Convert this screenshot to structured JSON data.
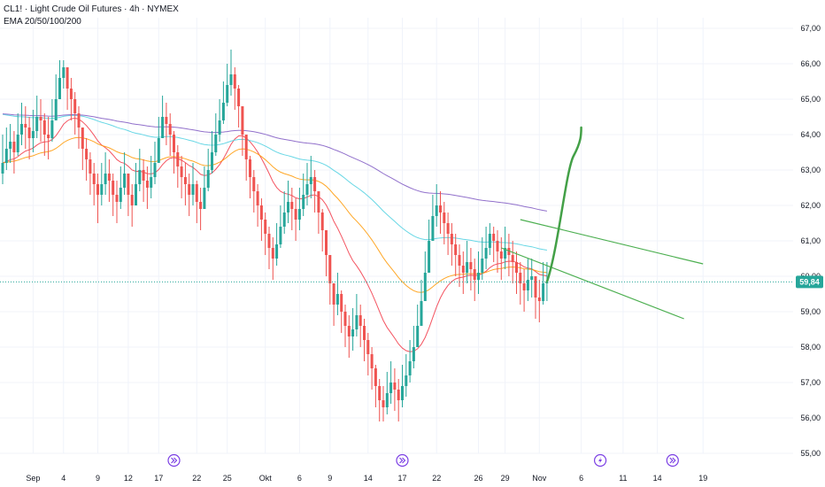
{
  "header": {
    "symbol_line": "CL1! · Light Crude Oil Futures · 4h · NYMEX",
    "indicator_line": "EMA 20/50/100/200"
  },
  "colors": {
    "up": "#26a69a",
    "down": "#ef5350",
    "ema20": "#f23645",
    "ema50": "#ff9800",
    "ema100": "#4dd0e1",
    "ema200": "#7e57c2",
    "channel": "#4caf50",
    "projection": "#43a047",
    "last_price": "#26a69a",
    "grid": "#f0f3fa",
    "event": "#7b3fe4"
  },
  "chart_data": {
    "type": "candlestick",
    "title": "CL1! · Light Crude Oil Futures · 4h · NYMEX",
    "ylim": [
      55.0,
      67.3
    ],
    "y_ticks": [
      "55,00",
      "56,00",
      "57,00",
      "58,00",
      "59,00",
      "60,00",
      "61,00",
      "62,00",
      "63,00",
      "64,00",
      "65,00",
      "66,00",
      "67,00"
    ],
    "y_tick_values": [
      55,
      56,
      57,
      58,
      59,
      60,
      61,
      62,
      63,
      64,
      65,
      66,
      67
    ],
    "x_tick_labels": [
      "Sep",
      "4",
      "9",
      "12",
      "17",
      "22",
      "25",
      "Okt",
      "6",
      "9",
      "14",
      "17",
      "22",
      "26",
      "29",
      "Nov",
      "6",
      "11",
      "14",
      "19"
    ],
    "x_tick_index": [
      8,
      16,
      25,
      33,
      41,
      51,
      59,
      69,
      78,
      86,
      96,
      105,
      114,
      125,
      132,
      141,
      152,
      163,
      172,
      184
    ],
    "last_price": {
      "label": "59,84",
      "value": 59.84
    },
    "event_markers": [
      {
        "index": 45,
        "icon": "double-chevron-right-icon"
      },
      {
        "index": 105,
        "icon": "double-chevron-right-icon"
      },
      {
        "index": 157,
        "icon": "lightning-icon"
      },
      {
        "index": 176,
        "icon": "double-chevron-right-icon"
      }
    ],
    "closes": [
      63.2,
      63.6,
      63.8,
      63.5,
      64.0,
      64.3,
      64.2,
      63.9,
      64.1,
      64.5,
      64.4,
      64.0,
      63.9,
      64.4,
      65.0,
      65.6,
      65.9,
      65.3,
      65.0,
      64.6,
      64.2,
      63.6,
      63.3,
      62.9,
      62.6,
      62.3,
      62.6,
      62.9,
      62.7,
      62.3,
      62.1,
      62.5,
      62.9,
      62.3,
      62.0,
      62.6,
      63.0,
      62.7,
      62.5,
      62.8,
      63.2,
      63.9,
      64.5,
      64.3,
      64.0,
      63.5,
      63.1,
      62.8,
      62.6,
      62.3,
      62.6,
      62.1,
      61.9,
      62.5,
      63.0,
      63.5,
      64.0,
      64.4,
      64.9,
      65.4,
      65.7,
      65.3,
      64.8,
      64.0,
      63.3,
      62.8,
      62.4,
      62.0,
      61.6,
      61.2,
      60.8,
      60.5,
      60.9,
      61.4,
      61.8,
      62.1,
      61.9,
      61.6,
      61.9,
      62.3,
      62.6,
      62.8,
      62.4,
      61.8,
      61.3,
      60.6,
      59.8,
      59.2,
      59.5,
      59.0,
      58.6,
      58.3,
      58.5,
      58.9,
      58.6,
      58.2,
      57.8,
      57.4,
      56.9,
      56.5,
      56.3,
      56.7,
      57.0,
      56.8,
      56.5,
      56.9,
      57.2,
      57.6,
      58.0,
      58.6,
      59.3,
      60.1,
      61.0,
      61.7,
      62.0,
      61.8,
      61.5,
      61.2,
      60.9,
      60.6,
      60.3,
      60.1,
      60.4,
      60.2,
      59.9,
      60.1,
      60.5,
      60.8,
      61.2,
      61.0,
      60.7,
      60.5,
      60.8,
      60.6,
      60.4,
      60.1,
      59.8,
      59.6,
      59.9,
      60.0,
      59.4,
      59.3,
      59.8,
      59.84
    ],
    "highs": [
      64.0,
      64.2,
      64.3,
      64.1,
      64.6,
      64.9,
      64.8,
      64.5,
      64.7,
      65.1,
      65.0,
      64.6,
      64.5,
      65.0,
      65.7,
      66.1,
      66.1,
      65.9,
      65.6,
      65.2,
      64.8,
      64.2,
      63.9,
      63.5,
      63.2,
      62.9,
      63.2,
      63.5,
      63.3,
      62.9,
      62.7,
      63.1,
      63.5,
      62.9,
      62.6,
      63.2,
      63.6,
      63.3,
      63.1,
      63.4,
      63.8,
      64.5,
      65.1,
      64.9,
      64.6,
      64.1,
      63.7,
      63.4,
      63.2,
      62.9,
      63.2,
      62.7,
      62.5,
      63.1,
      63.6,
      64.1,
      64.6,
      65.0,
      65.5,
      66.0,
      66.4,
      65.9,
      65.4,
      64.6,
      63.9,
      63.4,
      63.0,
      62.6,
      62.2,
      61.8,
      61.4,
      61.1,
      61.5,
      62.0,
      62.4,
      62.7,
      62.5,
      62.2,
      62.5,
      62.9,
      63.2,
      63.4,
      63.0,
      62.4,
      61.9,
      61.2,
      60.4,
      59.8,
      60.1,
      59.6,
      59.2,
      58.9,
      59.1,
      59.5,
      59.2,
      58.8,
      58.4,
      58.0,
      57.5,
      57.1,
      56.9,
      57.3,
      57.6,
      57.4,
      57.1,
      57.5,
      57.8,
      58.2,
      58.6,
      59.2,
      59.9,
      60.7,
      61.6,
      62.3,
      62.6,
      62.4,
      62.1,
      61.8,
      61.5,
      61.2,
      60.9,
      60.7,
      61.0,
      60.8,
      60.5,
      60.7,
      61.1,
      61.4,
      61.5,
      61.4,
      61.3,
      61.1,
      61.4,
      61.2,
      61.0,
      60.7,
      60.4,
      60.2,
      60.5,
      60.5,
      60.0,
      59.9,
      60.4,
      60.4
    ],
    "lows": [
      62.6,
      63.0,
      63.2,
      62.9,
      63.4,
      63.7,
      63.6,
      63.3,
      63.5,
      63.9,
      63.8,
      63.4,
      63.3,
      63.8,
      64.4,
      65.0,
      65.3,
      64.7,
      64.4,
      64.0,
      63.6,
      63.0,
      62.7,
      62.3,
      62.0,
      61.5,
      62.0,
      62.3,
      62.1,
      61.7,
      61.5,
      61.9,
      62.3,
      61.7,
      61.4,
      62.0,
      62.4,
      62.1,
      61.9,
      62.2,
      62.6,
      63.3,
      63.9,
      63.7,
      63.4,
      62.9,
      62.5,
      62.2,
      62.0,
      61.7,
      62.0,
      61.5,
      61.3,
      61.9,
      62.4,
      62.9,
      63.4,
      63.8,
      64.3,
      64.8,
      65.1,
      64.7,
      64.2,
      63.4,
      62.7,
      62.2,
      61.8,
      61.4,
      61.0,
      60.6,
      60.2,
      59.9,
      60.3,
      60.8,
      61.2,
      61.5,
      61.3,
      61.0,
      61.3,
      61.7,
      62.0,
      62.2,
      61.8,
      61.2,
      60.7,
      60.0,
      59.2,
      58.6,
      58.9,
      58.4,
      58.0,
      57.7,
      57.9,
      58.3,
      58.0,
      57.6,
      57.2,
      56.8,
      56.3,
      55.9,
      55.9,
      56.1,
      56.4,
      56.2,
      55.9,
      56.3,
      56.6,
      57.0,
      57.4,
      58.0,
      58.7,
      59.5,
      60.4,
      61.1,
      61.4,
      61.2,
      60.9,
      60.6,
      60.3,
      60.0,
      59.7,
      59.5,
      59.8,
      59.6,
      59.3,
      59.5,
      59.9,
      60.2,
      60.6,
      60.4,
      60.1,
      59.9,
      60.2,
      60.0,
      59.8,
      59.5,
      59.2,
      59.0,
      59.3,
      59.4,
      58.8,
      58.7,
      59.2,
      59.3
    ]
  }
}
